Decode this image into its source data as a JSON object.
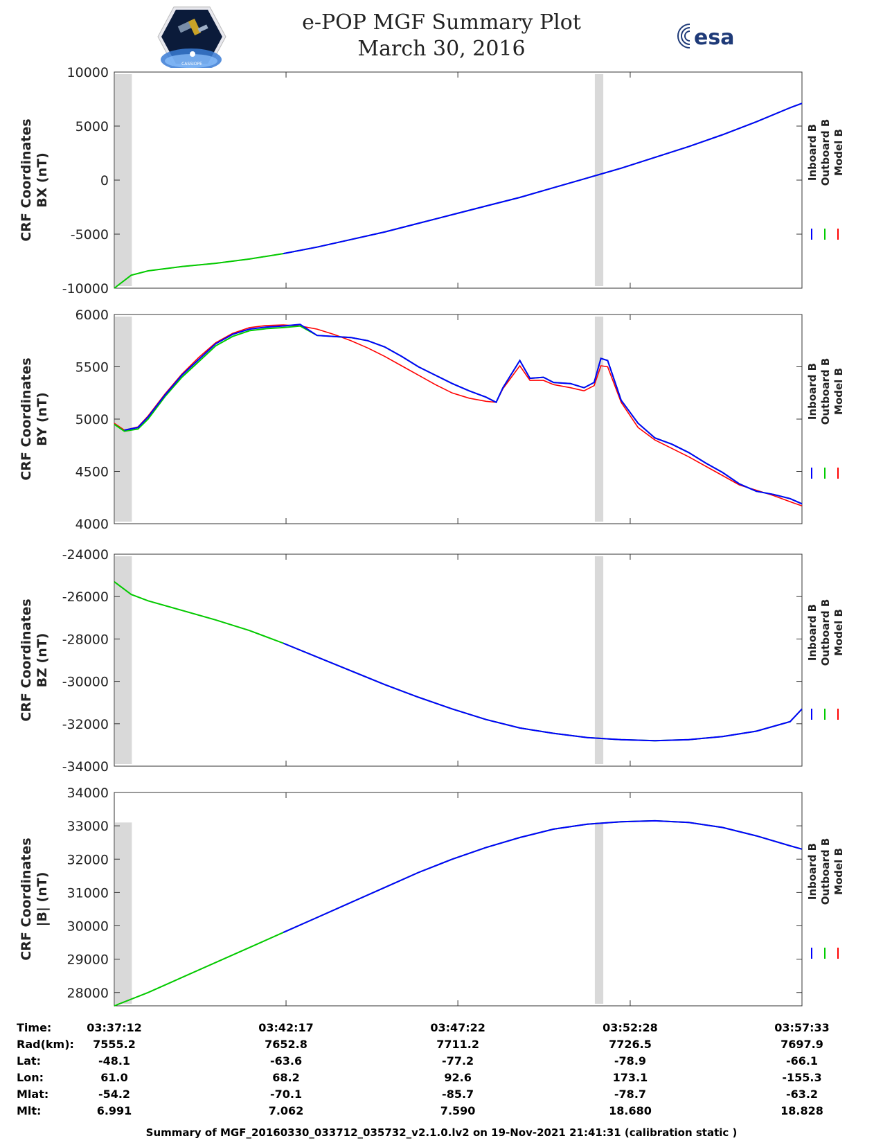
{
  "title": {
    "line1": "e-POP MGF Summary Plot",
    "line2": "March 30, 2016"
  },
  "logos": {
    "mission_logo_text": "CASSIOPE",
    "esa_logo": "esa"
  },
  "colors": {
    "inboard": "#0000ff",
    "outboard": "#00cc00",
    "model": "#ff0000",
    "gap_shade": "#d9d9d9"
  },
  "chart_data": [
    {
      "type": "line",
      "panel": "BX",
      "ylabel_line1": "CRF Coordinates",
      "ylabel_line2": "BX (nT)",
      "ylim": [
        -10000,
        10000
      ],
      "yticks": [
        -10000,
        -5000,
        0,
        5000,
        10000
      ],
      "x_minutes": [
        0,
        0.5,
        1,
        2,
        3,
        4,
        5,
        6,
        7,
        8,
        9,
        10,
        11,
        12,
        13,
        14,
        15,
        16,
        17,
        18,
        19,
        20,
        20.35
      ],
      "series": [
        {
          "name": "Inboard B",
          "values": [
            -10000,
            -8800,
            -8400,
            -8000,
            -7700,
            -7300,
            -6800,
            -6200,
            -5500,
            -4800,
            -4000,
            -3200,
            -2400,
            -1600,
            -700,
            200,
            1100,
            2100,
            3100,
            4200,
            5400,
            6700,
            7100
          ]
        },
        {
          "name": "Outboard B",
          "values": [
            -10000,
            -8800,
            -8400,
            -8000,
            -7700,
            -7300,
            -6800,
            -6200,
            -5500,
            -4800,
            -4000,
            -3200,
            -2400,
            -1600,
            -700,
            200,
            1100,
            2100,
            3100,
            4200,
            5400,
            6700,
            7100
          ]
        },
        {
          "name": "Model B",
          "values": [
            -10000,
            -8800,
            -8400,
            -8000,
            -7700,
            -7300,
            -6800,
            -6200,
            -5500,
            -4800,
            -4000,
            -3200,
            -2400,
            -1600,
            -700,
            200,
            1100,
            2100,
            3100,
            4200,
            5400,
            6700,
            7100
          ]
        }
      ],
      "outboard_end_minute": 5.2,
      "gaps": [
        [
          0,
          0.5
        ],
        [
          14.2,
          14.45
        ]
      ]
    },
    {
      "type": "line",
      "panel": "BY",
      "ylabel_line1": "CRF Coordinates",
      "ylabel_line2": "BY (nT)",
      "ylim": [
        4000,
        6000
      ],
      "yticks": [
        4000,
        4500,
        5000,
        5500,
        6000
      ],
      "x_minutes": [
        0,
        0.3,
        0.7,
        1,
        1.5,
        2,
        2.5,
        3,
        3.5,
        4,
        4.5,
        5,
        5.5,
        6,
        6.5,
        7,
        7.5,
        8,
        8.5,
        9,
        9.5,
        10,
        10.5,
        11,
        11.3,
        11.5,
        12,
        12.3,
        12.7,
        13,
        13.5,
        13.9,
        14.2,
        14.4,
        14.6,
        15,
        15.5,
        16,
        16.5,
        17,
        17.5,
        18,
        18.5,
        19,
        19.5,
        20,
        20.35
      ],
      "series": [
        {
          "name": "Inboard B",
          "values": [
            4960,
            4895,
            4920,
            5020,
            5230,
            5420,
            5570,
            5720,
            5810,
            5860,
            5880,
            5890,
            5905,
            5800,
            5790,
            5780,
            5750,
            5690,
            5600,
            5500,
            5420,
            5340,
            5270,
            5210,
            5160,
            5300,
            5560,
            5390,
            5400,
            5350,
            5340,
            5300,
            5350,
            5580,
            5560,
            5180,
            4960,
            4820,
            4760,
            4680,
            4580,
            4490,
            4380,
            4310,
            4280,
            4240,
            4190
          ]
        },
        {
          "name": "Outboard B",
          "values": [
            4950,
            4885,
            4905,
            5000,
            5215,
            5400,
            5550,
            5700,
            5790,
            5845,
            5865,
            5875,
            5890,
            5800,
            5790,
            5780,
            5750,
            5690,
            5600,
            5500,
            5420,
            5340,
            5270,
            5210,
            5160,
            5300,
            5560,
            5390,
            5400,
            5350,
            5340,
            5300,
            5350,
            5580,
            5560,
            5180,
            4960,
            4820,
            4760,
            4680,
            4580,
            4490,
            4380,
            4310,
            4280,
            4240,
            4190
          ]
        },
        {
          "name": "Model B",
          "values": [
            4960,
            4895,
            4925,
            5030,
            5240,
            5430,
            5590,
            5730,
            5820,
            5875,
            5895,
            5900,
            5890,
            5860,
            5810,
            5750,
            5680,
            5600,
            5510,
            5420,
            5330,
            5250,
            5200,
            5170,
            5160,
            5290,
            5510,
            5370,
            5370,
            5330,
            5300,
            5270,
            5320,
            5510,
            5500,
            5160,
            4920,
            4800,
            4720,
            4640,
            4550,
            4460,
            4370,
            4320,
            4270,
            4210,
            4170
          ]
        }
      ],
      "outboard_end_minute": 5.2,
      "gaps": [
        [
          0,
          0.5
        ],
        [
          14.2,
          14.45
        ]
      ]
    },
    {
      "type": "line",
      "panel": "BZ",
      "ylabel_line1": "CRF Coordinates",
      "ylabel_line2": "BZ (nT)",
      "ylim": [
        -34000,
        -24000
      ],
      "yticks": [
        -34000,
        -32000,
        -30000,
        -28000,
        -26000,
        -24000
      ],
      "x_minutes": [
        0,
        0.5,
        1,
        2,
        3,
        4,
        5,
        6,
        7,
        8,
        9,
        10,
        11,
        12,
        13,
        14,
        15,
        16,
        17,
        18,
        19,
        20,
        20.35
      ],
      "series": [
        {
          "name": "Inboard B",
          "values": [
            -25300,
            -25900,
            -26200,
            -26650,
            -27100,
            -27600,
            -28200,
            -28850,
            -29500,
            -30150,
            -30750,
            -31300,
            -31800,
            -32200,
            -32450,
            -32650,
            -32750,
            -32800,
            -32750,
            -32600,
            -32350,
            -31900,
            -31300
          ]
        },
        {
          "name": "Outboard B",
          "values": [
            -25300,
            -25900,
            -26200,
            -26650,
            -27100,
            -27600,
            -28200,
            -28850,
            -29500,
            -30150,
            -30750,
            -31300,
            -31800,
            -32200,
            -32450,
            -32650,
            -32750,
            -32800,
            -32750,
            -32600,
            -32350,
            -31900,
            -31300
          ]
        },
        {
          "name": "Model B",
          "values": [
            -25300,
            -25900,
            -26200,
            -26650,
            -27100,
            -27600,
            -28200,
            -28850,
            -29500,
            -30150,
            -30750,
            -31300,
            -31800,
            -32200,
            -32450,
            -32650,
            -32750,
            -32800,
            -32750,
            -32600,
            -32350,
            -31900,
            -31300
          ]
        }
      ],
      "outboard_end_minute": 5.2,
      "gaps": [
        [
          0,
          0.5
        ],
        [
          14.2,
          14.45
        ]
      ]
    },
    {
      "type": "line",
      "panel": "|B|",
      "ylabel_line1": "CRF Coordinates",
      "ylabel_line2": "|B| (nT)",
      "ylim": [
        27600,
        34000
      ],
      "yticks": [
        28000,
        29000,
        30000,
        31000,
        32000,
        33000,
        34000
      ],
      "x_minutes": [
        0,
        1,
        2,
        3,
        4,
        5,
        6,
        7,
        8,
        9,
        10,
        11,
        12,
        13,
        14,
        15,
        16,
        17,
        18,
        19,
        20,
        20.35
      ],
      "series": [
        {
          "name": "Inboard B",
          "values": [
            27600,
            28000,
            28450,
            28900,
            29350,
            29800,
            30250,
            30700,
            31150,
            31600,
            32000,
            32350,
            32650,
            32900,
            33050,
            33120,
            33150,
            33100,
            32950,
            32700,
            32400,
            32300
          ]
        },
        {
          "name": "Outboard B",
          "values": [
            27600,
            28000,
            28450,
            28900,
            29350,
            29800,
            30250,
            30700,
            31150,
            31600,
            32000,
            32350,
            32650,
            32900,
            33050,
            33120,
            33150,
            33100,
            32950,
            32700,
            32400,
            32300
          ]
        },
        {
          "name": "Model B",
          "values": [
            27600,
            28000,
            28450,
            28900,
            29350,
            29800,
            30250,
            30700,
            31150,
            31600,
            32000,
            32350,
            32650,
            32900,
            33050,
            33120,
            33150,
            33100,
            32950,
            32700,
            32400,
            32300
          ]
        }
      ],
      "outboard_end_minute": 5.2,
      "gaps": [
        [
          0,
          0.5
        ],
        [
          14.2,
          14.45
        ]
      ],
      "gap_top_value": 33100
    }
  ],
  "x_axis": {
    "start_minute": 0,
    "end_minute": 20.35,
    "tick_minutes": [
      0,
      5.083,
      10.167,
      15.267,
      20.35
    ]
  },
  "legend": [
    "Inboard B",
    "Outboard B",
    "Model B"
  ],
  "ephemeris": {
    "row_labels": [
      "Time:",
      "Rad(km):",
      "Lat:",
      "Lon:",
      "Mlat:",
      "Mlt:"
    ],
    "columns": [
      [
        "03:37:12",
        "7555.2",
        "-48.1",
        "61.0",
        "-54.2",
        "6.991"
      ],
      [
        "03:42:17",
        "7652.8",
        "-63.6",
        "68.2",
        "-70.1",
        "7.062"
      ],
      [
        "03:47:22",
        "7711.2",
        "-77.2",
        "92.6",
        "-85.7",
        "7.590"
      ],
      [
        "03:52:28",
        "7726.5",
        "-78.9",
        "173.1",
        "-78.7",
        "18.680"
      ],
      [
        "03:57:33",
        "7697.9",
        "-66.1",
        "-155.3",
        "-63.2",
        "18.828"
      ]
    ]
  },
  "footer": "Summary of MGF_20160330_033712_035732_v2.1.0.lv2 on 19-Nov-2021 21:41:31 (calibration static )"
}
